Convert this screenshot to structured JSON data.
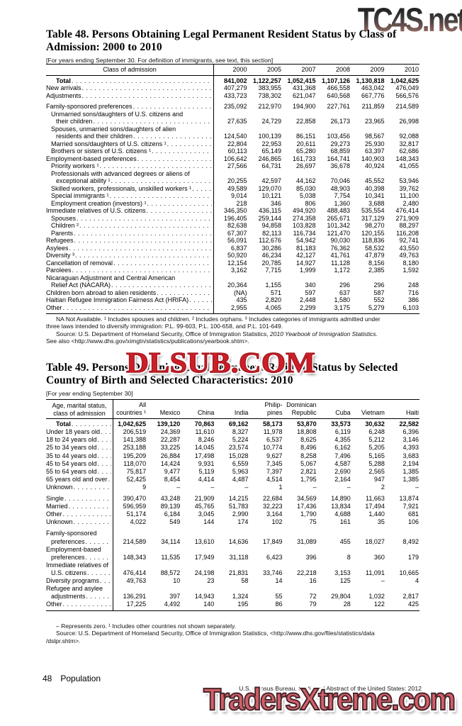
{
  "watermarks": {
    "top": "TC4S.net",
    "middle": "DLSUB.COM",
    "bottom": "TradersXtreme.com"
  },
  "table48": {
    "title_line1": "Table 48. Persons Obtaining Legal Permanent Resident Status by Class of",
    "title_line2": "Admission: 2000 to 2010",
    "bracket": "[For years ending September 30. For definition of immigrants, see text, this section]",
    "col_header": "Class of admission",
    "years": [
      "2000",
      "2005",
      "2007",
      "2008",
      "2009",
      "2010"
    ],
    "rows": [
      {
        "lines": [
          "Total"
        ],
        "indent": 2,
        "bold": true,
        "values": [
          "841,002",
          "1,122,257",
          "1,052,415",
          "1,107,126",
          "1,130,818",
          "1,042,625"
        ]
      },
      {
        "lines": [
          "New arrivals"
        ],
        "indent": 0,
        "values": [
          "407,279",
          "383,955",
          "431,368",
          "466,558",
          "463,042",
          "476,049"
        ]
      },
      {
        "lines": [
          "Adjustments"
        ],
        "indent": 0,
        "values": [
          "433,723",
          "738,302",
          "621,047",
          "640,568",
          "667,776",
          "566,576"
        ]
      },
      {
        "lines": [
          "Family-sponsored preferences"
        ],
        "indent": 0,
        "gap": true,
        "values": [
          "235,092",
          "212,970",
          "194,900",
          "227,761",
          "211,859",
          "214,589"
        ]
      },
      {
        "lines": [
          "Unmarried sons/daughters of U.S. citizens and",
          "their children"
        ],
        "indent": 1,
        "values": [
          "27,635",
          "24,729",
          "22,858",
          "26,173",
          "23,965",
          "26,998"
        ]
      },
      {
        "lines": [
          "Spouses, unmarried sons/daughters of alien",
          "residents and their children"
        ],
        "indent": 1,
        "values": [
          "124,540",
          "100,139",
          "86,151",
          "103,456",
          "98,567",
          "92,088"
        ]
      },
      {
        "lines": [
          "Married sons/daughters of U.S. citizens ¹"
        ],
        "indent": 1,
        "values": [
          "22,804",
          "22,953",
          "20,611",
          "29,273",
          "25,930",
          "32,817"
        ]
      },
      {
        "lines": [
          "Brothers or sisters of U.S. citizens ¹"
        ],
        "indent": 1,
        "values": [
          "60,113",
          "65,149",
          "65,280",
          "68,859",
          "63,397",
          "62,686"
        ]
      },
      {
        "lines": [
          "Employment-based preferences"
        ],
        "indent": 0,
        "values": [
          "106,642",
          "246,865",
          "161,733",
          "164,741",
          "140,903",
          "148,343"
        ]
      },
      {
        "lines": [
          "Priority workers ¹"
        ],
        "indent": 1,
        "values": [
          "27,566",
          "64,731",
          "26,697",
          "36,678",
          "40,924",
          "41,055"
        ]
      },
      {
        "lines": [
          "Professionals with advanced degrees or aliens of",
          "exceptional ability ¹"
        ],
        "indent": 1,
        "values": [
          "20,255",
          "42,597",
          "44,162",
          "70,046",
          "45,552",
          "53,946"
        ]
      },
      {
        "lines": [
          "Skilled workers, professionals, unskilled workers ¹"
        ],
        "indent": 1,
        "values": [
          "49,589",
          "129,070",
          "85,030",
          "48,903",
          "40,398",
          "39,762"
        ]
      },
      {
        "lines": [
          "Special immigrants ¹"
        ],
        "indent": 1,
        "values": [
          "9,014",
          "10,121",
          "5,038",
          "7,754",
          "10,341",
          "11,100"
        ]
      },
      {
        "lines": [
          "Employment creation (investors) ¹"
        ],
        "indent": 1,
        "values": [
          "218",
          "346",
          "806",
          "1,360",
          "3,688",
          "2,480"
        ]
      },
      {
        "lines": [
          "Immediate relatives of U.S. citizens"
        ],
        "indent": 0,
        "values": [
          "346,350",
          "436,115",
          "494,920",
          "488,483",
          "535,554",
          "476,414"
        ]
      },
      {
        "lines": [
          "Spouses"
        ],
        "indent": 1,
        "values": [
          "196,405",
          "259,144",
          "274,358",
          "265,671",
          "317,129",
          "271,909"
        ]
      },
      {
        "lines": [
          "Children ²"
        ],
        "indent": 1,
        "values": [
          "82,638",
          "94,858",
          "103,828",
          "101,342",
          "98,270",
          "88,297"
        ]
      },
      {
        "lines": [
          "Parents"
        ],
        "indent": 1,
        "values": [
          "67,307",
          "82,113",
          "116,734",
          "121,470",
          "120,155",
          "116,208"
        ]
      },
      {
        "lines": [
          "Refugees"
        ],
        "indent": 0,
        "values": [
          "56,091",
          "112,676",
          "54,942",
          "90,030",
          "118,836",
          "92,741"
        ]
      },
      {
        "lines": [
          "Asylees"
        ],
        "indent": 0,
        "values": [
          "6,837",
          "30,286",
          "81,183",
          "76,362",
          "58,532",
          "43,550"
        ]
      },
      {
        "lines": [
          "Diversity ³"
        ],
        "indent": 0,
        "values": [
          "50,920",
          "46,234",
          "42,127",
          "41,761",
          "47,879",
          "49,763"
        ]
      },
      {
        "lines": [
          "Cancellation of removal"
        ],
        "indent": 0,
        "values": [
          "12,154",
          "20,785",
          "14,927",
          "11,128",
          "8,156",
          "8,180"
        ]
      },
      {
        "lines": [
          "Parolees"
        ],
        "indent": 0,
        "values": [
          "3,162",
          "7,715",
          "1,999",
          "1,172",
          "2,385",
          "1,592"
        ]
      },
      {
        "lines": [
          "Nicaraguan Adjustment and Central American",
          "Relief Act (NACARA)"
        ],
        "indent": 0,
        "values": [
          "20,364",
          "1,155",
          "340",
          "296",
          "296",
          "248"
        ]
      },
      {
        "lines": [
          "Children born abroad to alien residents"
        ],
        "indent": 0,
        "values": [
          "(NA)",
          "571",
          "597",
          "637",
          "587",
          "716"
        ]
      },
      {
        "lines": [
          "Haitian Refugee Immigration Fairness Act (HRIFA)"
        ],
        "indent": 0,
        "values": [
          "435",
          "2,820",
          "2,448",
          "1,580",
          "552",
          "386"
        ]
      },
      {
        "lines": [
          "Other"
        ],
        "indent": 0,
        "values": [
          "2,955",
          "4,065",
          "2,299",
          "3,175",
          "5,279",
          "6,103"
        ]
      }
    ],
    "notes": [
      {
        "text": "NA Not Available. ¹ Includes spouses and children. ² Includes orphans. ³ Includes categories of immigrants admitted under",
        "indent": true
      },
      {
        "text": "three laws intended to diversify immigration: P.L. 99-603, P.L. 100-658, and P.L. 101-649.",
        "indent": false
      },
      {
        "text": "Source: U.S. Department of Homeland Security, Office of Immigration Statistics, ",
        "italic": "2010 Yearbook of Immigration Statistics.",
        "indent": true
      },
      {
        "text": "See also <http://www.dhs.gov/ximgtn/statistics/publications/yearbook.shtm>.",
        "indent": false
      }
    ]
  },
  "table49": {
    "title_line1": "Table 49. Persons Obtaining Legal Permanent Resident Status by Selected",
    "title_line2": "Country of Birth and Selected Characteristics: 2010",
    "bracket": "[For year ending September 30]",
    "col_header_line1": "Age, marital status,",
    "col_header_line2": "class of admission",
    "cols": [
      [
        "All",
        "countries ¹"
      ],
      [
        "Mexico"
      ],
      [
        "China"
      ],
      [
        "India"
      ],
      [
        "Philip-",
        "pines"
      ],
      [
        "Dominican",
        "Republic"
      ],
      [
        "Cuba"
      ],
      [
        "Vietnam"
      ],
      [
        "Haiti"
      ]
    ],
    "rows": [
      {
        "lines": [
          "Total"
        ],
        "indent": 2,
        "bold": true,
        "values": [
          "1,042,625",
          "139,120",
          "70,863",
          "69,162",
          "58,173",
          "53,870",
          "33,573",
          "30,632",
          "22,582"
        ]
      },
      {
        "lines": [
          "Under 18 years old"
        ],
        "indent": 0,
        "values": [
          "206,519",
          "24,369",
          "11,610",
          "8,327",
          "11,978",
          "18,808",
          "6,119",
          "6,248",
          "6,396"
        ]
      },
      {
        "lines": [
          "18 to 24 years old"
        ],
        "indent": 0,
        "values": [
          "141,388",
          "22,287",
          "8,246",
          "5,224",
          "6,537",
          "8,625",
          "4,355",
          "5,212",
          "3,146"
        ]
      },
      {
        "lines": [
          "25 to 34 years old"
        ],
        "indent": 0,
        "values": [
          "253,188",
          "33,225",
          "14,045",
          "23,574",
          "10,774",
          "8,496",
          "6,162",
          "5,205",
          "4,393"
        ]
      },
      {
        "lines": [
          "35 to 44 years old"
        ],
        "indent": 0,
        "values": [
          "195,209",
          "26,884",
          "17,498",
          "15,028",
          "9,627",
          "8,258",
          "7,496",
          "5,165",
          "3,683"
        ]
      },
      {
        "lines": [
          "45 to 54 years old"
        ],
        "indent": 0,
        "values": [
          "118,070",
          "14,424",
          "9,931",
          "6,559",
          "7,345",
          "5,067",
          "4,587",
          "5,288",
          "2,194"
        ]
      },
      {
        "lines": [
          "55 to 64 years old"
        ],
        "indent": 0,
        "values": [
          "75,817",
          "9,477",
          "5,119",
          "5,963",
          "7,397",
          "2,821",
          "2,690",
          "2,565",
          "1,385"
        ]
      },
      {
        "lines": [
          "65 years old and over"
        ],
        "indent": 0,
        "values": [
          "52,425",
          "8,454",
          "4,414",
          "4,487",
          "4,514",
          "1,795",
          "2,164",
          "947",
          "1,385"
        ]
      },
      {
        "lines": [
          "Unknown"
        ],
        "indent": 0,
        "values": [
          "9",
          "–",
          "–",
          "–",
          "1",
          "–",
          "–",
          "2",
          "–"
        ]
      },
      {
        "lines": [
          "Single"
        ],
        "indent": 0,
        "gap": true,
        "values": [
          "390,470",
          "43,248",
          "21,909",
          "14,215",
          "22,684",
          "34,569",
          "14,890",
          "11,663",
          "13,874"
        ]
      },
      {
        "lines": [
          "Married"
        ],
        "indent": 0,
        "values": [
          "596,959",
          "89,139",
          "45,765",
          "51,783",
          "32,223",
          "17,436",
          "13,834",
          "17,494",
          "7,921"
        ]
      },
      {
        "lines": [
          "Other"
        ],
        "indent": 0,
        "values": [
          "51,174",
          "6,184",
          "3,045",
          "2,990",
          "3,164",
          "1,790",
          "4,688",
          "1,440",
          "681"
        ]
      },
      {
        "lines": [
          "Unknown"
        ],
        "indent": 0,
        "values": [
          "4,022",
          "549",
          "144",
          "174",
          "102",
          "75",
          "161",
          "35",
          "106"
        ]
      },
      {
        "lines": [
          "Family-sponsored",
          "preferences"
        ],
        "indent": 0,
        "gap": true,
        "values": [
          "214,589",
          "34,114",
          "13,610",
          "14,636",
          "17,849",
          "31,089",
          "455",
          "18,027",
          "8,492"
        ]
      },
      {
        "lines": [
          "Employment-based",
          "preferences"
        ],
        "indent": 0,
        "values": [
          "148,343",
          "11,535",
          "17,949",
          "31,118",
          "6,423",
          "396",
          "8",
          "360",
          "179"
        ]
      },
      {
        "lines": [
          "Immediate relatives of",
          "U.S. citizens"
        ],
        "indent": 0,
        "values": [
          "476,414",
          "88,572",
          "24,198",
          "21,831",
          "33,746",
          "22,218",
          "3,153",
          "11,091",
          "10,665"
        ]
      },
      {
        "lines": [
          "Diversity programs"
        ],
        "indent": 0,
        "values": [
          "49,763",
          "10",
          "23",
          "58",
          "14",
          "16",
          "125",
          "–",
          "4"
        ]
      },
      {
        "lines": [
          "Refugee and asylee",
          "adjustments"
        ],
        "indent": 0,
        "values": [
          "136,291",
          "397",
          "14,943",
          "1,324",
          "55",
          "72",
          "29,804",
          "1,032",
          "2,817"
        ]
      },
      {
        "lines": [
          "Other"
        ],
        "indent": 0,
        "values": [
          "17,225",
          "4,492",
          "140",
          "195",
          "86",
          "79",
          "28",
          "122",
          "425"
        ]
      }
    ],
    "notes": [
      {
        "text": "– Represents zero. ¹ Includes other countries not shown separately.",
        "indent": true
      },
      {
        "text": "Source: U.S. Department of Homeland Security, Office of Immigration Statistics, <http://www.dhs.gov/files/statistics/data",
        "indent": true
      },
      {
        "text": "/dslpr.shtm>.",
        "indent": false
      }
    ]
  },
  "footer": {
    "page_number": "48",
    "section": "Population",
    "source": "U.S. Census Bureau, Statistical Abstract of the United States: 2012"
  }
}
